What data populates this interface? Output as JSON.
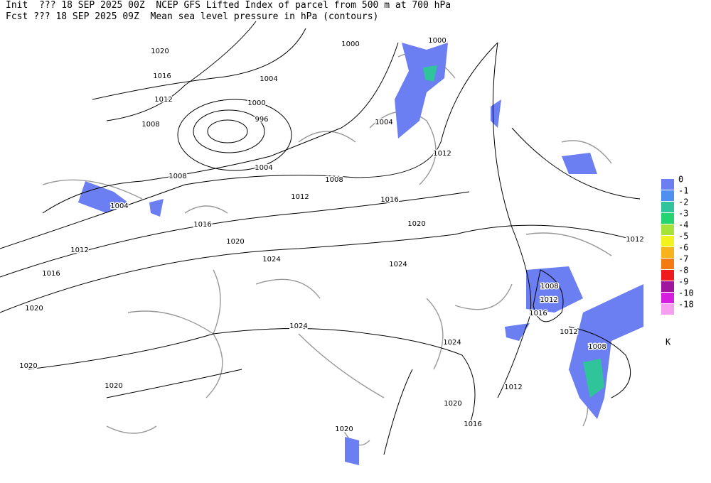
{
  "header": {
    "init": "Init  ??? 18 SEP 2025 00Z  NCEP GFS Lifted Index of parcel from 500 m at 700 hPa",
    "fcst": "Fcst ??? 18 SEP 2025 09Z  Mean sea level pressure in hPa (contours)"
  },
  "contour_labels": [
    "1020",
    "1016",
    "1012",
    "1008",
    "1004",
    "1000",
    "996",
    "1004",
    "1000",
    "1000",
    "1004",
    "1012",
    "1008",
    "1008",
    "1004",
    "1012",
    "1016",
    "1016",
    "1020",
    "1020",
    "1012",
    "1016",
    "1024",
    "1024",
    "1020",
    "1024",
    "1024",
    "1020",
    "1020",
    "1012",
    "1020",
    "1016",
    "1020",
    "1012",
    "1008",
    "1012",
    "1016",
    "1012",
    "1008"
  ],
  "legend": {
    "unit": "K",
    "items": [
      {
        "label": "0",
        "color": "#6b7ef2"
      },
      {
        "label": "-1",
        "color": "#4f8ff0"
      },
      {
        "label": "-2",
        "color": "#2fc49a"
      },
      {
        "label": "-3",
        "color": "#24d470"
      },
      {
        "label": "-4",
        "color": "#a6e33a"
      },
      {
        "label": "-5",
        "color": "#f2f21d"
      },
      {
        "label": "-6",
        "color": "#f6b31c"
      },
      {
        "label": "-7",
        "color": "#f47a14"
      },
      {
        "label": "-8",
        "color": "#ee1c1c"
      },
      {
        "label": "-9",
        "color": "#a0169e"
      },
      {
        "label": "-10",
        "color": "#d51ee0"
      },
      {
        "label": "-18",
        "color": "#f79ef0"
      }
    ]
  }
}
